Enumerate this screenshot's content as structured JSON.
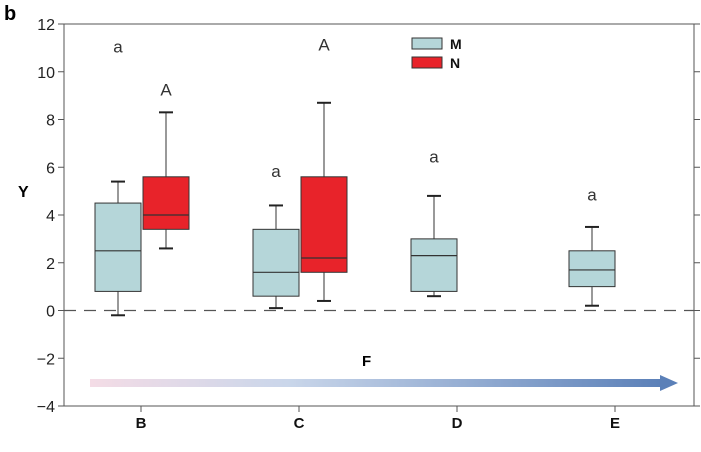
{
  "chart_data": {
    "type": "box",
    "panel_label": "b",
    "ylabel": "Y",
    "xlabel": "",
    "ylim": [
      -4,
      12
    ],
    "yticks": [
      -4,
      -2,
      0,
      2,
      4,
      6,
      8,
      10,
      12
    ],
    "categories": [
      "B",
      "C",
      "D",
      "E"
    ],
    "reference_line": 0,
    "arrow_label": "F",
    "series": [
      {
        "name": "M",
        "color": "#b5d6d9",
        "boxes": [
          {
            "category": "B",
            "min": -0.2,
            "q1": 0.8,
            "median": 2.5,
            "q3": 4.5,
            "max": 5.4,
            "label": "a"
          },
          {
            "category": "C",
            "min": 0.1,
            "q1": 0.6,
            "median": 1.6,
            "q3": 3.4,
            "max": 4.4,
            "label": "a"
          },
          {
            "category": "D",
            "min": 0.6,
            "q1": 0.8,
            "median": 2.3,
            "q3": 3.0,
            "max": 4.8,
            "label": "a"
          },
          {
            "category": "E",
            "min": 0.2,
            "q1": 1.0,
            "median": 1.7,
            "q3": 2.5,
            "max": 3.5,
            "label": "a"
          }
        ]
      },
      {
        "name": "N",
        "color": "#e8232a",
        "boxes": [
          {
            "category": "B",
            "min": 2.6,
            "q1": 3.4,
            "median": 4.0,
            "q3": 5.6,
            "max": 8.3,
            "label": "A"
          },
          {
            "category": "C",
            "min": 0.4,
            "q1": 1.6,
            "median": 2.2,
            "q3": 5.6,
            "max": 8.7,
            "label": "A"
          }
        ]
      }
    ],
    "sig_labels": [
      {
        "series": "M",
        "category": "B",
        "text": "a",
        "y": 10.8
      },
      {
        "series": "N",
        "category": "B",
        "text": "A",
        "y": 9.0
      },
      {
        "series": "N",
        "category": "C",
        "text": "A",
        "y": 10.9
      },
      {
        "series": "M",
        "category": "C",
        "text": "a",
        "y": 5.6
      },
      {
        "series": "M",
        "category": "D",
        "text": "a",
        "y": 6.2
      },
      {
        "series": "M",
        "category": "E",
        "text": "a",
        "y": 4.6
      }
    ],
    "legend": {
      "position": "top-center",
      "entries": [
        "M",
        "N"
      ]
    },
    "grid": false
  }
}
